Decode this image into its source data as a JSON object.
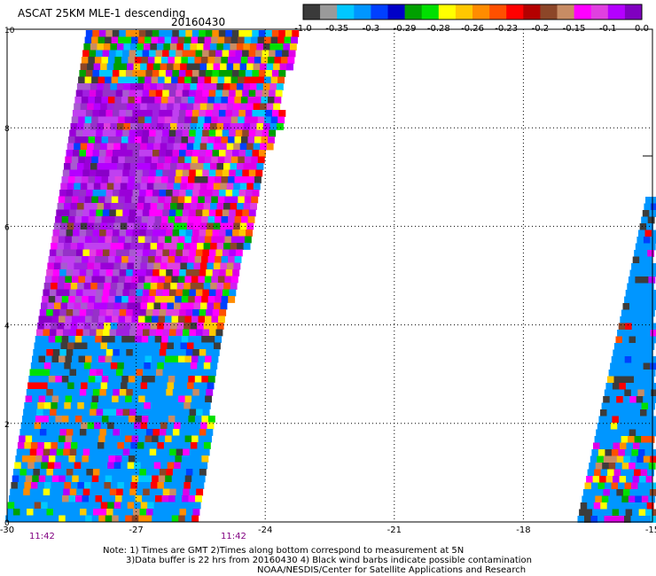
{
  "header": {
    "title": "ASCAT 25KM MLE-1 descending",
    "date": "20160430"
  },
  "colorbar": {
    "colors": [
      "#3a3a3a",
      "#9a9a9a",
      "#00c8ff",
      "#0096ff",
      "#0040ff",
      "#0000c8",
      "#00a000",
      "#00e000",
      "#ffff00",
      "#ffc800",
      "#ff8c00",
      "#ff5000",
      "#ff0000",
      "#b40000",
      "#8c4628",
      "#c88c64",
      "#ff00ff",
      "#e040e0",
      "#b400ff",
      "#8000c0"
    ],
    "tick_labels": [
      "-1.0",
      "-0.35",
      "-0.3",
      "-0.29",
      "-0.28",
      "-0.26",
      "-0.23",
      "-0.2",
      "-0.15",
      "-0.1",
      "0.0"
    ]
  },
  "map": {
    "x_ticks": [
      "-30",
      "-27",
      "-24",
      "-21",
      "-18",
      "-15"
    ],
    "y_ticks": [
      "0",
      "2",
      "4",
      "6",
      "8",
      "10"
    ],
    "times": [
      "11:42",
      "11:42"
    ]
  },
  "footer": {
    "note_line1": "Note: 1) Times are GMT 2)Times along bottom correspond to measurement at 5N",
    "note_line2": "3)Data buffer is 22 hrs from 20160430 4) Black wind barbs indicate possible contamination",
    "credit": "NOAA/NESDIS/Center for Satellite Applications and Research"
  },
  "legend_palette": {
    "blue": "#0096ff",
    "purple": "#9a00d8",
    "magenta": "#e000e8",
    "dark": "#3c3c3c"
  }
}
